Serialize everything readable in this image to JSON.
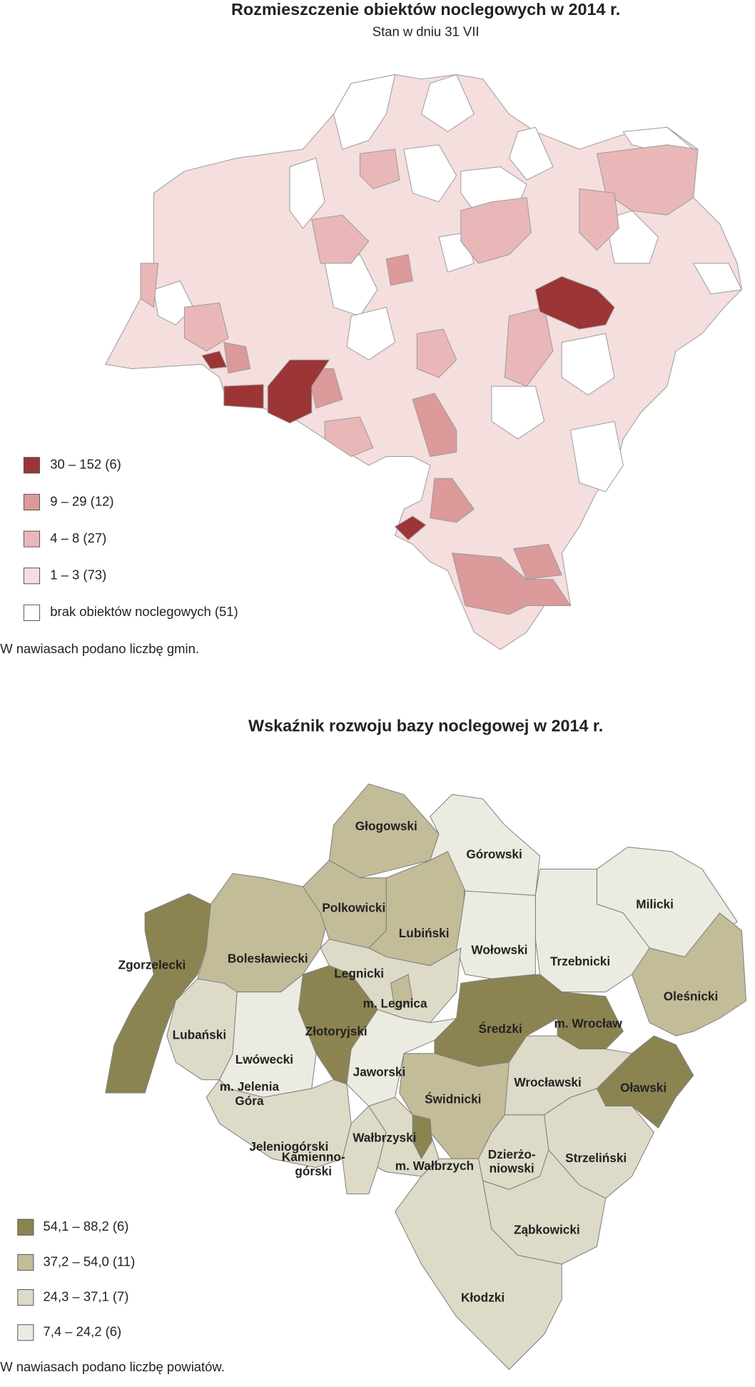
{
  "map1": {
    "title": "Rozmieszczenie obiektów noclegowych w 2014 r.",
    "subtitle": "Stan w dniu 31 VII",
    "legend": [
      {
        "label": "30 – 152 (6)",
        "color": "#9c3535"
      },
      {
        "label": "9 – 29 (12)",
        "color": "#dc9a9a"
      },
      {
        "label": "4 – 8 (27)",
        "color": "#e9b7b7"
      },
      {
        "label": "1 – 3 (73)",
        "color": "#f4dede"
      },
      {
        "label": "brak obiektów noclegowych (51)",
        "color": "#ffffff"
      }
    ],
    "note": "W nawiasach podano liczbę gmin."
  },
  "map2": {
    "title": "Wskaźnik rozwoju bazy noclegowej w 2014 r.",
    "legend": [
      {
        "label": "54,1 – 88,2 (6)",
        "color": "#8b8451"
      },
      {
        "label": "37,2 – 54,0 (11)",
        "color": "#c3bc98"
      },
      {
        "label": "24,3 – 37,1 (7)",
        "color": "#dddac7"
      },
      {
        "label": "7,4 – 24,2 (6)",
        "color": "#ecebe1"
      }
    ],
    "note": "W nawiasach podano liczbę powiatów.",
    "regions": [
      [
        "Głogowski"
      ],
      [
        "Górowski"
      ],
      [
        "Milicki"
      ],
      [
        "Polkowicki"
      ],
      [
        "Lubiński"
      ],
      [
        "Zgorzelecki"
      ],
      [
        "Bolesławiecki"
      ],
      [
        "Wołowski"
      ],
      [
        "Trzebnicki"
      ],
      [
        "Legnicki"
      ],
      [
        "Oleśnicki"
      ],
      [
        "m. Legnica"
      ],
      [
        "Średzki"
      ],
      [
        "m. Wrocław"
      ],
      [
        "Lubański"
      ],
      [
        "Złotoryjski"
      ],
      [
        "Lwówecki"
      ],
      [
        "Jaworski"
      ],
      [
        "Wrocławski"
      ],
      [
        "Oławski"
      ],
      [
        "m. Jelenia",
        "Góra"
      ],
      [
        "Świdnicki"
      ],
      [
        "Jeleniogórski"
      ],
      [
        "Wałbrzyski"
      ],
      [
        "Strzeliński"
      ],
      [
        "Dzierżo-",
        "niowski"
      ],
      [
        "Kamienno-",
        "górski"
      ],
      [
        "m. Wałbrzych"
      ],
      [
        "Ząbkowicki"
      ],
      [
        "Kłodzki"
      ]
    ]
  }
}
